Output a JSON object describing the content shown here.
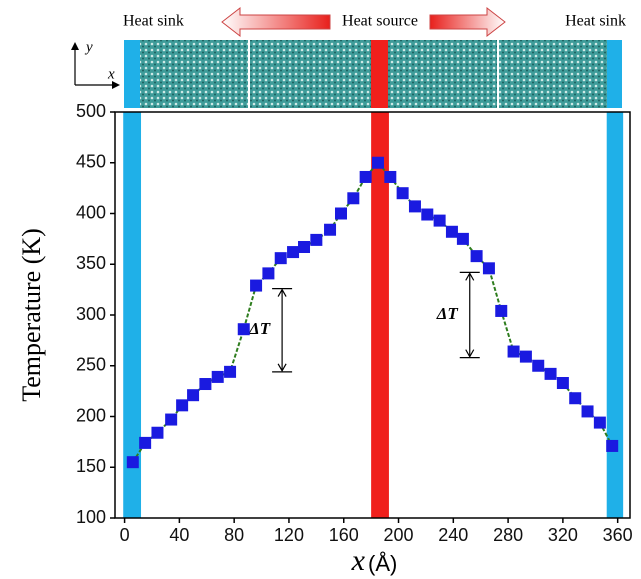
{
  "chart_data": {
    "type": "scatter-line",
    "ylabel": "Temperature (K)",
    "xlabel_var": "x",
    "xlabel_unit": "(Å)",
    "top_labels": {
      "left": "Heat sink",
      "center": "Heat source",
      "right": "Heat sink",
      "axis_y": "y",
      "axis_x": "x"
    },
    "xlim": [
      -7,
      369
    ],
    "ylim": [
      100,
      500
    ],
    "xticks": [
      0,
      40,
      80,
      120,
      160,
      200,
      240,
      280,
      320,
      360
    ],
    "yticks": [
      100,
      150,
      200,
      250,
      300,
      350,
      400,
      450,
      500
    ],
    "bands": [
      {
        "x": [
          -1,
          12
        ],
        "color": "#1fb0e8"
      },
      {
        "x": [
          180,
          193
        ],
        "color": "#f0201c"
      },
      {
        "x": [
          352,
          364
        ],
        "color": "#1fb0e8"
      }
    ],
    "annotations": [
      {
        "text": "ΔT",
        "x": 115,
        "y": [
          326,
          244
        ]
      },
      {
        "text": "ΔT",
        "x": 252,
        "y": [
          342,
          258
        ]
      }
    ],
    "series": [
      {
        "color": "#1a1ae0",
        "line_color": "#2e7d1e",
        "x": [
          6,
          15,
          24,
          34,
          42,
          50,
          59,
          68,
          77,
          87,
          96,
          105,
          114,
          123,
          131,
          140,
          150,
          158,
          167,
          176,
          185,
          194,
          203,
          212,
          221,
          230,
          239,
          247,
          257,
          266,
          275,
          284,
          293,
          302,
          311,
          320,
          329,
          338,
          347,
          356
        ],
        "values": [
          155,
          174,
          184,
          197,
          211,
          221,
          232,
          239,
          244,
          286,
          329,
          341,
          356,
          362,
          367,
          374,
          384,
          400,
          415,
          436,
          450,
          436,
          420,
          407,
          399,
          393,
          382,
          375,
          358,
          346,
          304,
          264,
          259,
          250,
          242,
          233,
          218,
          205,
          194,
          171
        ]
      }
    ]
  }
}
